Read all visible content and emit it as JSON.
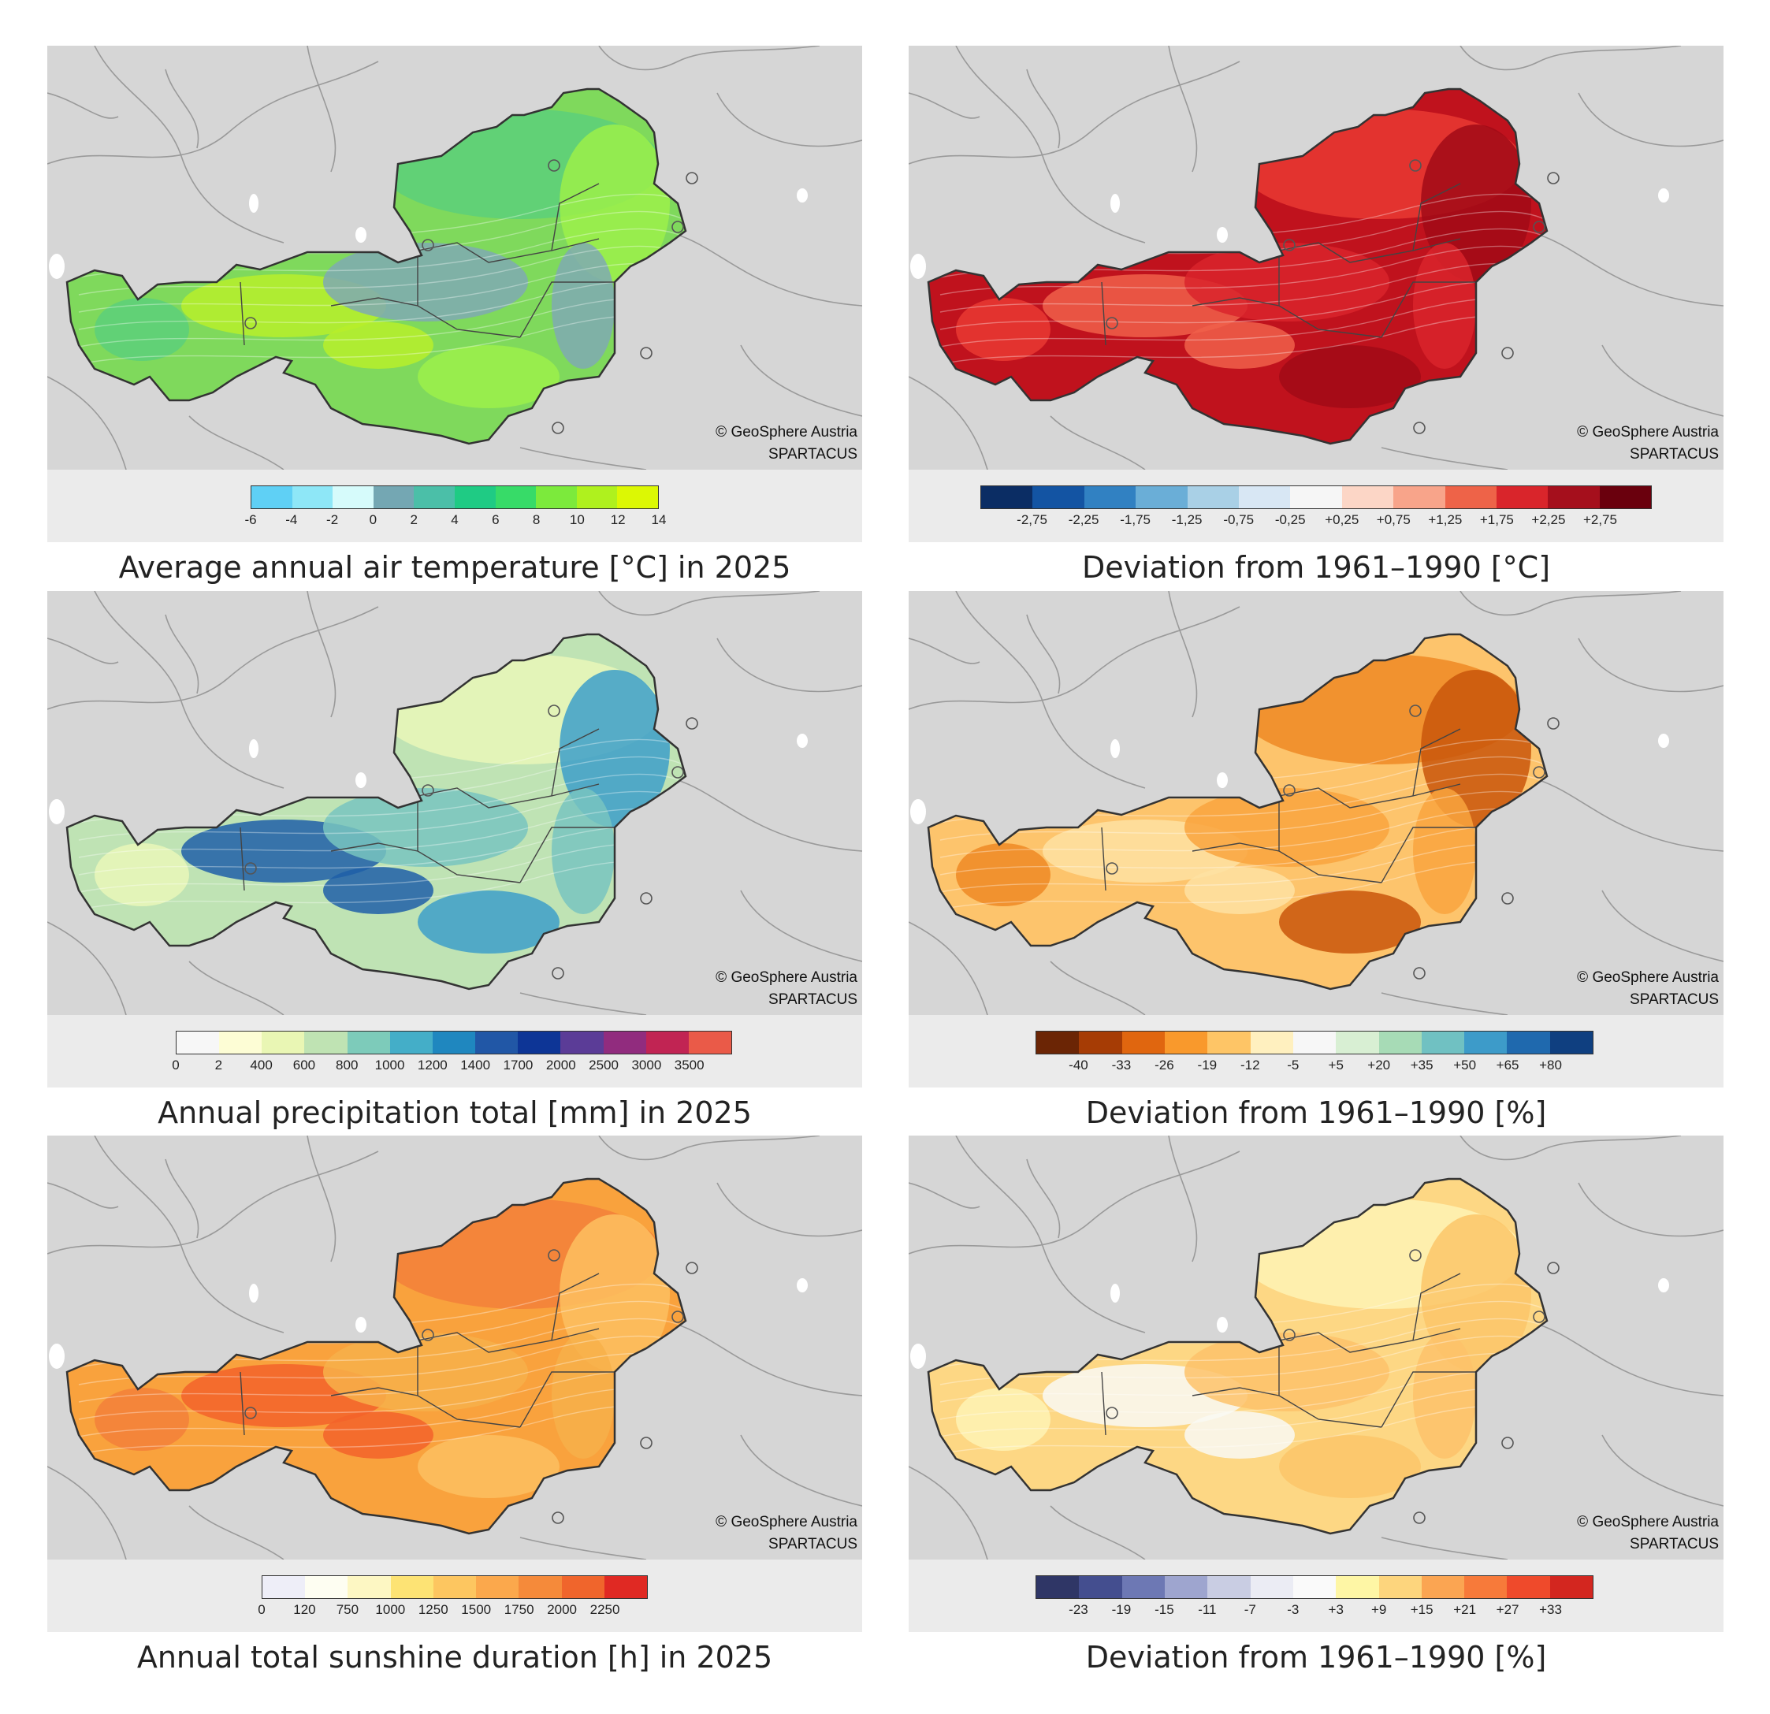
{
  "credit": {
    "line1": "© GeoSphere Austria",
    "line2": "SPARTACUS"
  },
  "panels": [
    {
      "caption": "Average annual air temperature [°C] in 2025",
      "base": "#7fd95c",
      "fills": [
        "#5ccf7a",
        "#9cf04a",
        "#b7ee2a",
        "#7fa9b3"
      ],
      "legend": {
        "colors": [
          "#5fd0f5",
          "#8ee7f7",
          "#d6fbfb",
          "#74a7b3",
          "#4bbfa8",
          "#1fcb84",
          "#37db68",
          "#7cea3c",
          "#aff11e",
          "#dcf804"
        ],
        "labels": [
          "-6",
          "-4",
          "-2",
          "0",
          "2",
          "4",
          "6",
          "8",
          "10",
          "12",
          "14"
        ],
        "tick_mode": "boundaries"
      }
    },
    {
      "caption": "Deviation from 1961–1990 [°C]",
      "base": "#c0121d",
      "fills": [
        "#e93a33",
        "#a10a16",
        "#f0604a",
        "#d9252b"
      ],
      "legend": {
        "colors": [
          "#0b2d64",
          "#1354a3",
          "#3181c2",
          "#6aaed7",
          "#a9d0e6",
          "#d8e7f4",
          "#f6f6f6",
          "#fcd6c6",
          "#f8a48a",
          "#ee6348",
          "#d9252b",
          "#a50f1c",
          "#6a000d"
        ],
        "labels": [
          "-2,75",
          "-2,25",
          "-1,75",
          "-1,25",
          "-0,75",
          "-0,25",
          "+0,25",
          "+0,75",
          "+1,25",
          "+1,75",
          "+2,25",
          "+2,75"
        ],
        "tick_mode": "inner"
      }
    },
    {
      "caption": "Annual precipitation total [mm] in 2025",
      "base": "#bfe3b4",
      "fills": [
        "#e9f7b9",
        "#3d9fc9",
        "#1f5fa8",
        "#78c4c0"
      ],
      "legend": {
        "colors": [
          "#f7f7f7",
          "#fdfdd5",
          "#e9f6b4",
          "#bfe3b3",
          "#7dcbba",
          "#44aec8",
          "#1f87bf",
          "#2157a6",
          "#0d3596",
          "#5b3c97",
          "#912c7e",
          "#c12453",
          "#ea5a48"
        ],
        "labels": [
          "0",
          "2",
          "400",
          "600",
          "800",
          "1000",
          "1200",
          "1400",
          "1700",
          "2000",
          "2500",
          "3000",
          "3500"
        ],
        "tick_mode": "boundaries_open"
      }
    },
    {
      "caption": "Deviation from 1961–1990 [%]",
      "base": "#fdc46c",
      "fills": [
        "#ef8a24",
        "#c9560b",
        "#fee2a2",
        "#f9a43e"
      ],
      "legend": {
        "colors": [
          "#6b2505",
          "#a63c05",
          "#e0660f",
          "#f9992c",
          "#fec566",
          "#fff0bf",
          "#f7f7f7",
          "#d8efd3",
          "#a7dbb6",
          "#70c1c2",
          "#3d9bc9",
          "#1f69ae",
          "#0f3f80"
        ],
        "labels": [
          "-40",
          "-33",
          "-26",
          "-19",
          "-12",
          "-5",
          "+5",
          "+20",
          "+35",
          "+50",
          "+65",
          "+80"
        ],
        "tick_mode": "inner"
      }
    },
    {
      "caption": "Annual total sunshine duration [h] in 2025",
      "base": "#f9a23d",
      "fills": [
        "#f3803a",
        "#fdc060",
        "#f3632a",
        "#f7b04a"
      ],
      "legend": {
        "colors": [
          "#eeeef8",
          "#fefef2",
          "#fdf7c3",
          "#fde374",
          "#fdc660",
          "#fba84c",
          "#f58a3a",
          "#f0652c",
          "#e02923"
        ],
        "labels": [
          "0",
          "120",
          "750",
          "1000",
          "1250",
          "1500",
          "1750",
          "2000",
          "2250"
        ],
        "tick_mode": "boundaries_open"
      }
    },
    {
      "caption": "Deviation from 1961–1990 [%]",
      "base": "#fdd784",
      "fills": [
        "#fef3b4",
        "#fbc569",
        "#f9f9f3",
        "#fdc26a"
      ],
      "legend": {
        "colors": [
          "#2f3666",
          "#444e8f",
          "#6d78b4",
          "#9ea5cf",
          "#c9cde3",
          "#ebecf4",
          "#fafafa",
          "#fef6a5",
          "#fdd57d",
          "#fba552",
          "#f77a3a",
          "#ef4a2b",
          "#d3261f"
        ],
        "labels": [
          "-23",
          "-19",
          "-15",
          "-11",
          "-7",
          "-3",
          "+3",
          "+9",
          "+15",
          "+21",
          "+27",
          "+33"
        ],
        "tick_mode": "inner"
      }
    }
  ]
}
